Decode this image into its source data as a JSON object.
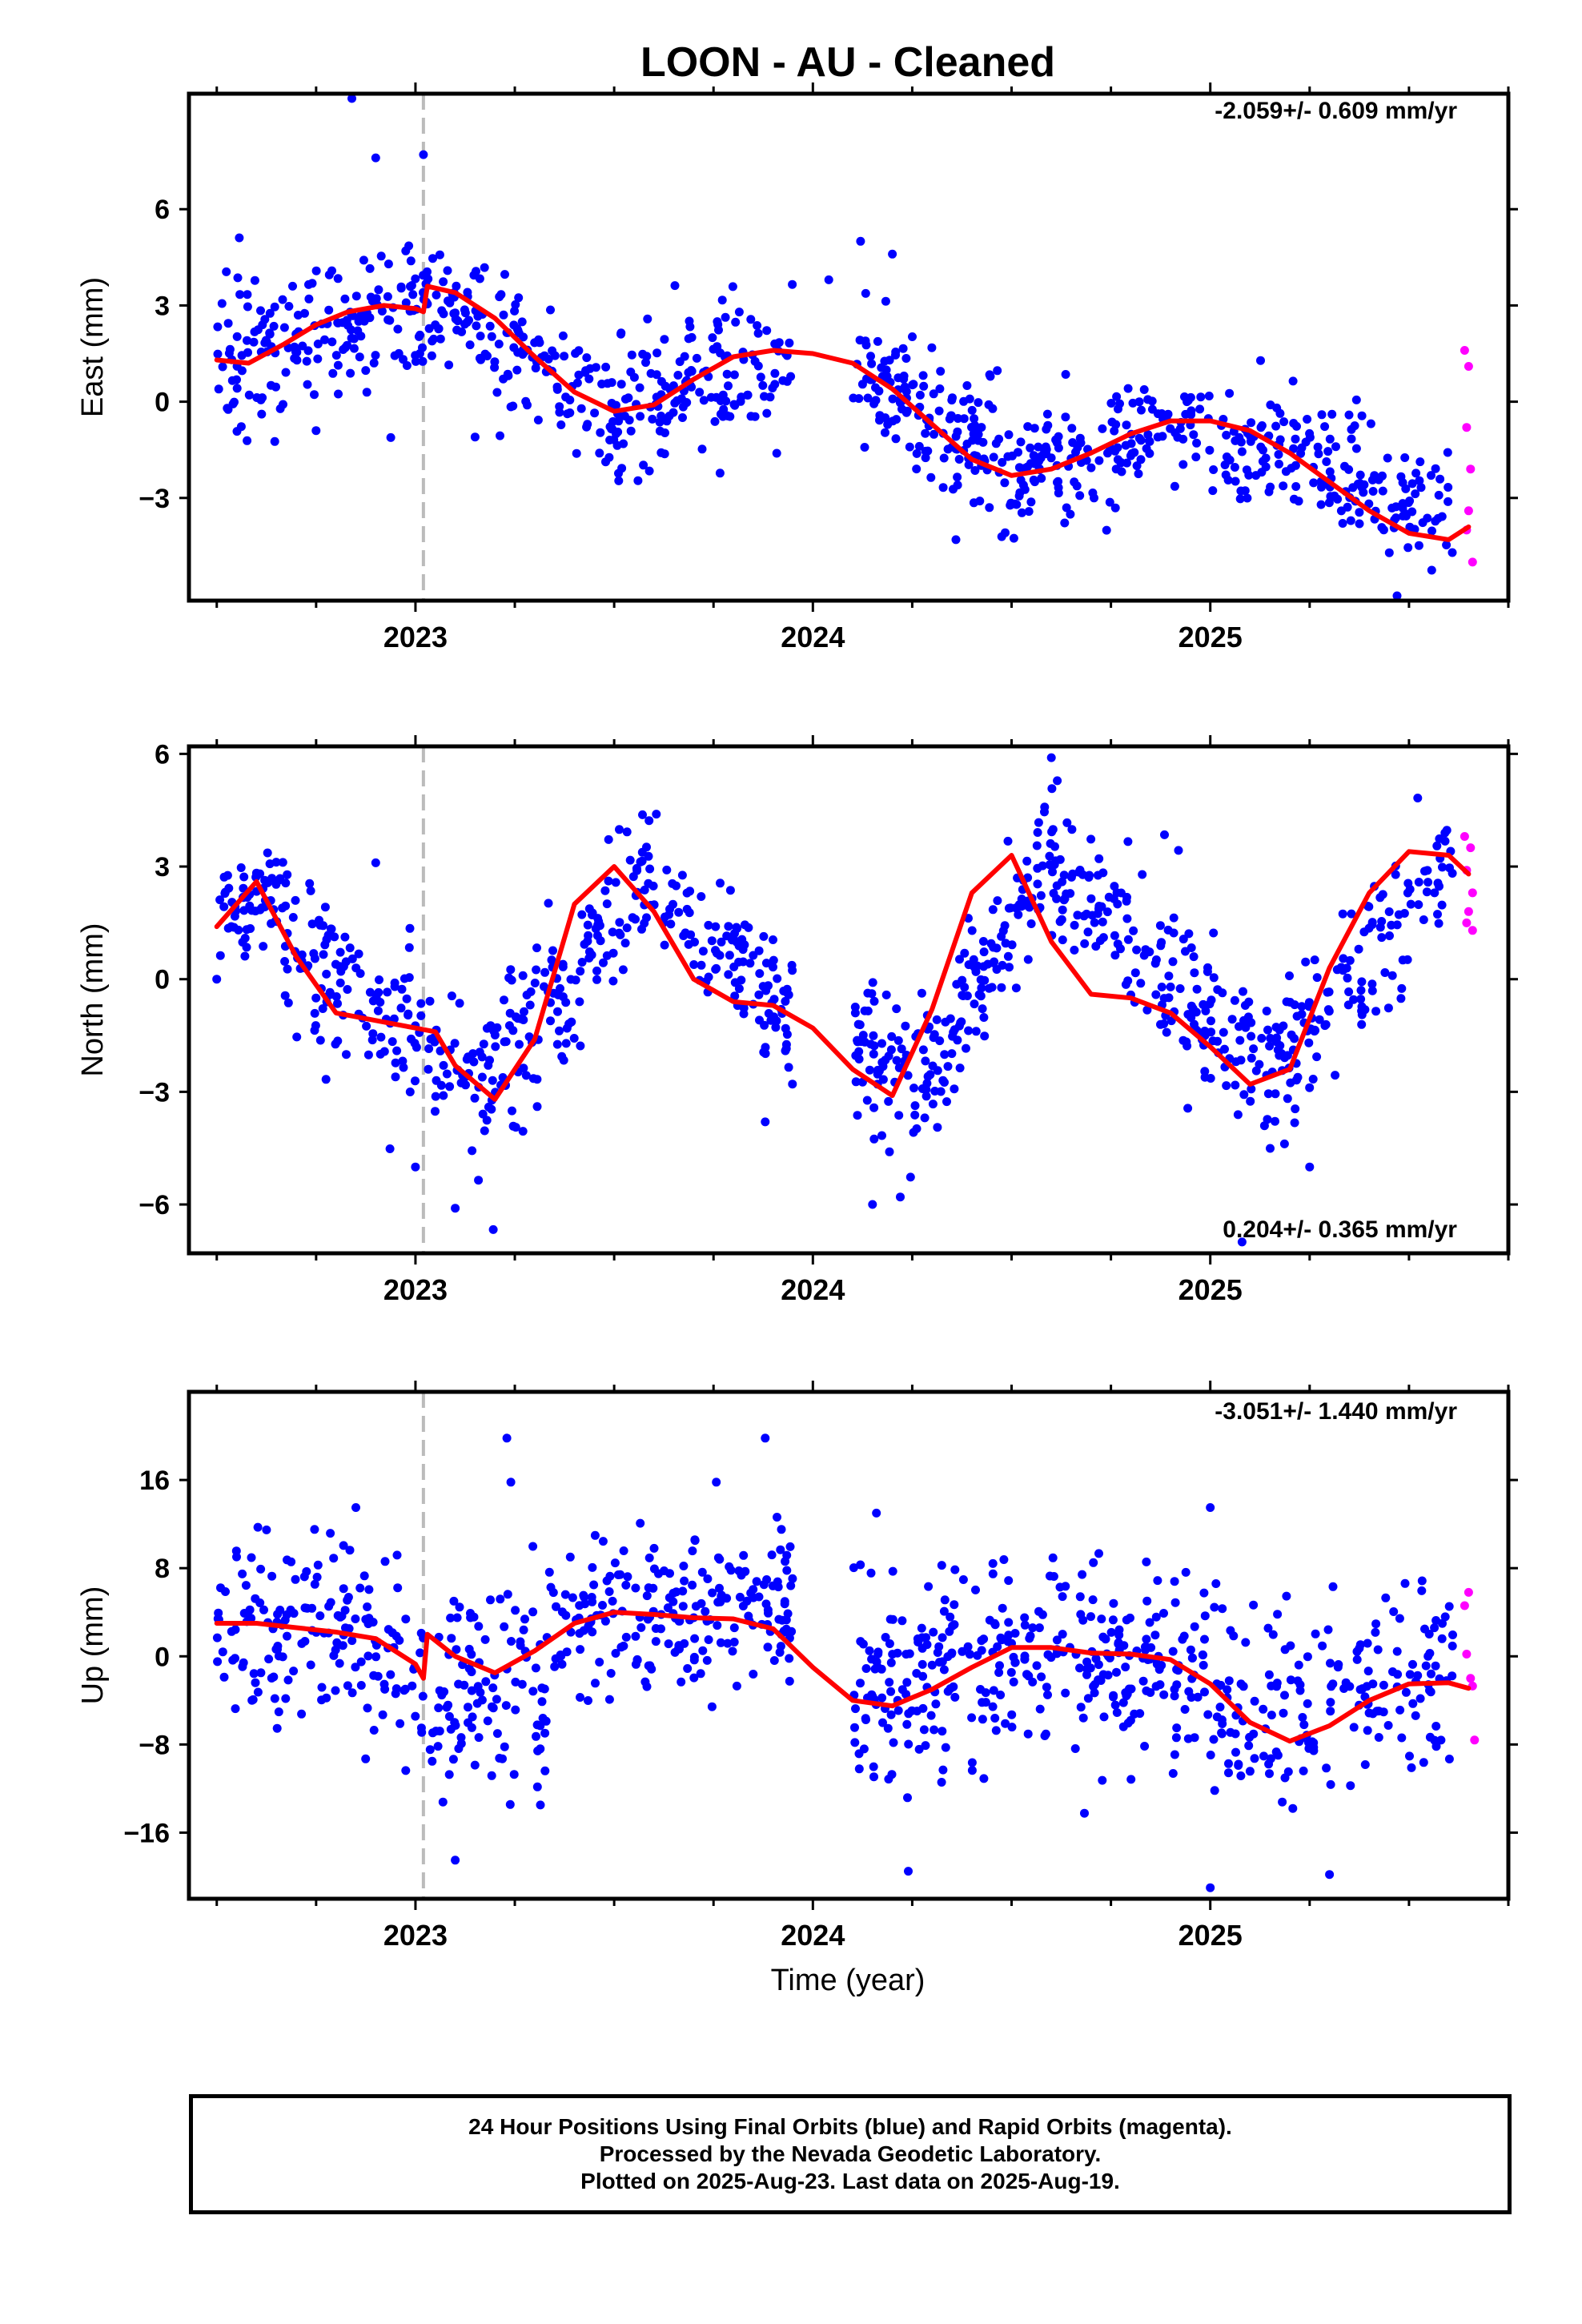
{
  "title": "LOON  - AU - Cleaned",
  "xlabel": "Time (year)",
  "footer": {
    "line1": "24 Hour Positions Using Final Orbits (blue) and Rapid Orbits (magenta).",
    "line2": "Processed by the Nevada Geodetic Laboratory.",
    "line3": "Plotted on 2025-Aug-23. Last data on 2025-Aug-19."
  },
  "colors": {
    "final": "#0000ff",
    "rapid": "#ff00ff",
    "model": "#ff0000",
    "marker_line": "#bbbbbb"
  },
  "chart_data": [
    {
      "type": "scatter",
      "ylabel": "East (mm)",
      "rate_text": "-2.059+/- 0.609 mm/yr",
      "xlim": [
        2022.43,
        2025.75
      ],
      "ylim": [
        -6.2,
        9.6
      ],
      "yticks": [
        -3,
        0,
        3,
        6
      ],
      "xticks": [
        2023,
        2024,
        2025
      ],
      "equipment_change": 2023.02,
      "model": {
        "x": [
          2022.5,
          2022.58,
          2022.67,
          2022.75,
          2022.83,
          2022.92,
          2023.0,
          2023.02,
          2023.03,
          2023.1,
          2023.2,
          2023.3,
          2023.4,
          2023.5,
          2023.6,
          2023.7,
          2023.8,
          2023.9,
          2024.0,
          2024.1,
          2024.2,
          2024.3,
          2024.4,
          2024.5,
          2024.6,
          2024.7,
          2024.8,
          2024.9,
          2025.0,
          2025.1,
          2025.2,
          2025.3,
          2025.4,
          2025.5,
          2025.6,
          2025.65
        ],
        "y": [
          1.3,
          1.2,
          1.8,
          2.4,
          2.8,
          3.0,
          2.9,
          2.8,
          3.6,
          3.4,
          2.6,
          1.4,
          0.3,
          -0.3,
          -0.1,
          0.7,
          1.4,
          1.6,
          1.5,
          1.2,
          0.4,
          -0.7,
          -1.8,
          -2.3,
          -2.1,
          -1.6,
          -1.0,
          -0.6,
          -0.6,
          -0.9,
          -1.6,
          -2.5,
          -3.4,
          -4.1,
          -4.3,
          -3.9
        ]
      },
      "final_points": {
        "segments": [
          {
            "x": [
              2022.5,
              2023.02
            ],
            "y0": 1.3,
            "y1": 3.0,
            "sd": 1.1,
            "n": 170
          },
          {
            "x": [
              2023.02,
              2023.5
            ],
            "y0": 3.5,
            "y1": -0.3,
            "sd": 0.9,
            "n": 150
          },
          {
            "x": [
              2023.5,
              2023.95
            ],
            "y0": -0.3,
            "y1": 1.6,
            "sd": 1.1,
            "n": 150
          },
          {
            "x": [
              2024.1,
              2024.5
            ],
            "y0": 1.0,
            "y1": -2.3,
            "sd": 1.1,
            "n": 150
          },
          {
            "x": [
              2024.5,
              2024.95
            ],
            "y0": -2.3,
            "y1": -0.6,
            "sd": 0.9,
            "n": 140
          },
          {
            "x": [
              2024.95,
              2025.61
            ],
            "y0": -0.6,
            "y1": -3.5,
            "sd": 0.9,
            "n": 190
          }
        ],
        "outliers": [
          [
            2022.84,
            9.5
          ],
          [
            2023.02,
            7.7
          ],
          [
            2022.9,
            7.6
          ],
          [
            2024.12,
            5.0
          ],
          [
            2024.2,
            4.6
          ],
          [
            2024.04,
            3.8
          ],
          [
            2024.36,
            -4.3
          ],
          [
            2025.47,
            -6.1
          ],
          [
            2023.15,
            -1.1
          ],
          [
            2022.75,
            -0.9
          ]
        ]
      },
      "rapid_points": {
        "x": [
          2025.64,
          2025.65,
          2025.645,
          2025.655,
          2025.65,
          2025.645,
          2025.66
        ],
        "y": [
          1.6,
          1.1,
          -0.8,
          -2.1,
          -3.4,
          -4.0,
          -5.0
        ]
      }
    },
    {
      "type": "scatter",
      "ylabel": "North (mm)",
      "rate_text": "0.204+/- 0.365 mm/yr",
      "xlim": [
        2022.43,
        2025.75
      ],
      "ylim": [
        -7.3,
        6.2
      ],
      "yticks": [
        -6,
        -3,
        0,
        3,
        6
      ],
      "xticks": [
        2023,
        2024,
        2025
      ],
      "equipment_change": 2023.02,
      "model": {
        "x": [
          2022.5,
          2022.6,
          2022.7,
          2022.8,
          2022.9,
          2023.0,
          2023.05,
          2023.1,
          2023.2,
          2023.3,
          2023.4,
          2023.5,
          2023.6,
          2023.7,
          2023.8,
          2023.9,
          2024.0,
          2024.1,
          2024.2,
          2024.3,
          2024.4,
          2024.5,
          2024.6,
          2024.7,
          2024.8,
          2024.9,
          2025.0,
          2025.1,
          2025.2,
          2025.3,
          2025.4,
          2025.5,
          2025.6,
          2025.65
        ],
        "y": [
          1.4,
          2.6,
          0.6,
          -0.9,
          -1.1,
          -1.3,
          -1.4,
          -2.3,
          -3.2,
          -1.6,
          2.0,
          3.0,
          1.8,
          0.0,
          -0.6,
          -0.7,
          -1.3,
          -2.4,
          -3.1,
          -0.8,
          2.3,
          3.3,
          1.0,
          -0.4,
          -0.5,
          -0.9,
          -1.8,
          -2.8,
          -2.4,
          0.3,
          2.3,
          3.4,
          3.3,
          2.8
        ]
      },
      "final_points": {
        "segments": [
          {
            "x": [
              2022.5,
              2022.67
            ],
            "y0": 2.0,
            "y1": 2.3,
            "sd": 0.7,
            "n": 60
          },
          {
            "x": [
              2022.67,
              2023.2
            ],
            "y0": 1.0,
            "y1": -2.8,
            "sd": 1.1,
            "n": 170
          },
          {
            "x": [
              2023.2,
              2023.58
            ],
            "y0": -2.6,
            "y1": 2.8,
            "sd": 1.1,
            "n": 130
          },
          {
            "x": [
              2023.58,
              2023.95
            ],
            "y0": 2.5,
            "y1": -0.8,
            "sd": 0.9,
            "n": 120
          },
          {
            "x": [
              2024.1,
              2024.33
            ],
            "y0": -1.8,
            "y1": -2.5,
            "sd": 1.0,
            "n": 90
          },
          {
            "x": [
              2024.33,
              2024.6
            ],
            "y0": -1.5,
            "y1": 3.3,
            "sd": 0.9,
            "n": 100
          },
          {
            "x": [
              2024.6,
              2025.15
            ],
            "y0": 2.8,
            "y1": -2.5,
            "sd": 1.0,
            "n": 190
          },
          {
            "x": [
              2025.15,
              2025.61
            ],
            "y0": -2.5,
            "y1": 3.2,
            "sd": 1.0,
            "n": 140
          }
        ],
        "outliers": [
          [
            2024.6,
            5.9
          ],
          [
            2023.0,
            -5.0
          ],
          [
            2023.1,
            -6.1
          ],
          [
            2024.15,
            -6.0
          ],
          [
            2024.22,
            -5.8
          ],
          [
            2025.08,
            -7.0
          ],
          [
            2025.25,
            -5.0
          ],
          [
            2023.88,
            -3.8
          ],
          [
            2022.9,
            3.1
          ],
          [
            2022.5,
            0.0
          ]
        ]
      },
      "rapid_points": {
        "x": [
          2025.64,
          2025.655,
          2025.645,
          2025.66,
          2025.65,
          2025.645,
          2025.66
        ],
        "y": [
          3.8,
          3.5,
          2.9,
          2.3,
          1.8,
          1.5,
          1.3
        ]
      }
    },
    {
      "type": "scatter",
      "ylabel": "Up (mm)",
      "rate_text": "-3.051+/- 1.440 mm/yr",
      "xlim": [
        2022.43,
        2025.75
      ],
      "ylim": [
        -22,
        24
      ],
      "yticks": [
        -16,
        -8,
        0,
        8,
        16
      ],
      "xticks": [
        2023,
        2024,
        2025
      ],
      "equipment_change": 2023.02,
      "model": {
        "x": [
          2022.5,
          2022.6,
          2022.7,
          2022.8,
          2022.9,
          2023.0,
          2023.02,
          2023.03,
          2023.1,
          2023.2,
          2023.3,
          2023.4,
          2023.5,
          2023.6,
          2023.7,
          2023.8,
          2023.9,
          2024.0,
          2024.1,
          2024.2,
          2024.3,
          2024.4,
          2024.5,
          2024.6,
          2024.7,
          2024.8,
          2024.9,
          2025.0,
          2025.1,
          2025.2,
          2025.3,
          2025.4,
          2025.5,
          2025.6,
          2025.65
        ],
        "y": [
          3.0,
          3.0,
          2.6,
          2.2,
          1.6,
          -0.7,
          -2.0,
          2.0,
          0.0,
          -1.5,
          0.5,
          3.0,
          4.0,
          3.8,
          3.5,
          3.4,
          2.5,
          -1.0,
          -4.0,
          -4.5,
          -3.0,
          -1.0,
          0.8,
          0.8,
          0.3,
          0.2,
          -0.3,
          -2.5,
          -6.0,
          -7.7,
          -6.3,
          -4.0,
          -2.5,
          -2.4,
          -2.9
        ]
      },
      "final_points": {
        "segments": [
          {
            "x": [
              2022.5,
              2023.0
            ],
            "y0": 4.0,
            "y1": 0.0,
            "sd": 4.5,
            "n": 160
          },
          {
            "x": [
              2023.0,
              2023.33
            ],
            "y0": -4.0,
            "y1": -3.0,
            "sd": 5.0,
            "n": 110
          },
          {
            "x": [
              2023.33,
              2023.95
            ],
            "y0": 3.0,
            "y1": 5.0,
            "sd": 3.3,
            "n": 210
          },
          {
            "x": [
              2024.1,
              2024.45
            ],
            "y0": -4.0,
            "y1": 0.0,
            "sd": 5.0,
            "n": 130
          },
          {
            "x": [
              2024.45,
              2025.0
            ],
            "y0": 0.5,
            "y1": -1.0,
            "sd": 4.2,
            "n": 200
          },
          {
            "x": [
              2025.0,
              2025.61
            ],
            "y0": -6.0,
            "y1": -1.5,
            "sd": 4.5,
            "n": 180
          }
        ],
        "outliers": [
          [
            2023.23,
            19.8
          ],
          [
            2023.88,
            19.8
          ],
          [
            2023.24,
            15.8
          ],
          [
            2023.1,
            -18.5
          ],
          [
            2024.24,
            -19.5
          ],
          [
            2025.0,
            -21.0
          ],
          [
            2025.3,
            -19.8
          ],
          [
            2022.85,
            13.5
          ],
          [
            2024.16,
            13.0
          ],
          [
            2025.0,
            13.5
          ]
        ]
      },
      "rapid_points": {
        "x": [
          2025.65,
          2025.64,
          2025.645,
          2025.655,
          2025.66,
          2025.665
        ],
        "y": [
          5.8,
          4.6,
          0.2,
          -2.0,
          -2.7,
          -7.6
        ]
      }
    }
  ]
}
